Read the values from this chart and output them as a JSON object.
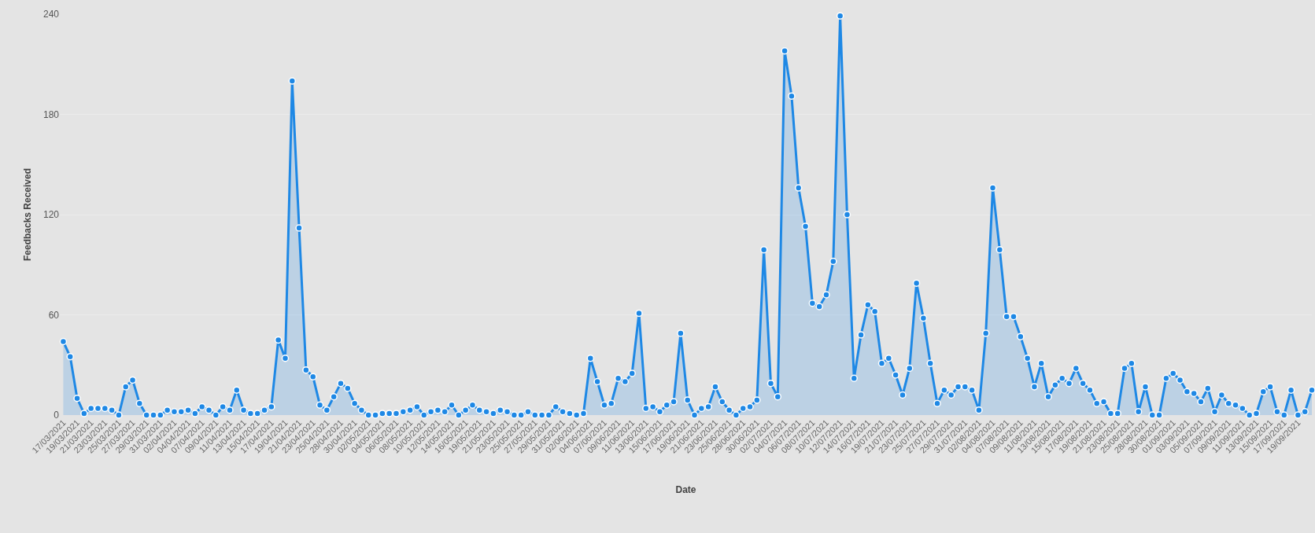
{
  "chart_data": {
    "type": "area",
    "xlabel": "Date",
    "ylabel": "Feedbacks Received",
    "categories": [
      "17/03/2021",
      null,
      "19/03/2021",
      null,
      "21/03/2021",
      null,
      "23/03/2021",
      null,
      "25/03/2021",
      null,
      "27/03/2021",
      null,
      "29/03/2021",
      null,
      "31/03/2021",
      null,
      "02/04/2021",
      null,
      "04/04/2021",
      null,
      "07/04/2021",
      null,
      "09/04/2021",
      null,
      "11/04/2021",
      null,
      "13/04/2021",
      null,
      "15/04/2021",
      null,
      "17/04/2021",
      null,
      "19/04/2021",
      null,
      "21/04/2021",
      null,
      "23/04/2021",
      null,
      "25/04/2021",
      null,
      "28/04/2021",
      null,
      "30/04/2021",
      null,
      "02/05/2021",
      null,
      "04/05/2021",
      null,
      "06/05/2021",
      null,
      "08/05/2021",
      null,
      "10/05/2021",
      null,
      "12/05/2021",
      null,
      "14/05/2021",
      null,
      "16/05/2021",
      null,
      "19/05/2021",
      null,
      "21/05/2021",
      null,
      "23/05/2021",
      null,
      "25/05/2021",
      null,
      "27/05/2021",
      null,
      "29/05/2021",
      null,
      "31/05/2021",
      null,
      "02/06/2021",
      null,
      "04/06/2021",
      null,
      "07/06/2021",
      null,
      "09/06/2021",
      null,
      "11/06/2021",
      null,
      "13/06/2021",
      null,
      "15/06/2021",
      null,
      "17/06/2021",
      null,
      "19/06/2021",
      null,
      "21/06/2021",
      null,
      "23/06/2021",
      null,
      "25/06/2021",
      null,
      "28/06/2021",
      null,
      "30/06/2021",
      null,
      "02/07/2021",
      null,
      "04/07/2021",
      null,
      "06/07/2021",
      null,
      "08/07/2021",
      null,
      "10/07/2021",
      null,
      "12/07/2021",
      null,
      "14/07/2021",
      null,
      "16/07/2021",
      null,
      "19/07/2021",
      null,
      "21/07/2021",
      null,
      "23/07/2021",
      null,
      "25/07/2021",
      null,
      "27/07/2021",
      null,
      "29/07/2021",
      null,
      "31/07/2021",
      null,
      "02/08/2021",
      null,
      "04/08/2021",
      null,
      "07/08/2021",
      null,
      "09/08/2021",
      null,
      "11/08/2021",
      null,
      "13/08/2021",
      null,
      "15/08/2021",
      null,
      "17/08/2021",
      null,
      "19/08/2021",
      null,
      "21/08/2021",
      null,
      "23/08/2021",
      null,
      "25/08/2021",
      null,
      "28/08/2021",
      null,
      "30/08/2021",
      null,
      "01/09/2021",
      null,
      "03/09/2021",
      null,
      "05/09/2021",
      null,
      "07/09/2021",
      null,
      "09/09/2021",
      null,
      "11/09/2021",
      null,
      "13/09/2021",
      null,
      "15/09/2021",
      null,
      "17/09/2021",
      null,
      "19/09/2021",
      null,
      null
    ],
    "series": [
      {
        "color": "#1e88e5",
        "values": [
          44,
          35,
          10,
          1,
          4,
          4,
          4,
          3,
          0,
          17,
          21,
          7,
          0,
          0,
          0,
          3,
          2,
          2,
          3,
          1,
          5,
          3,
          0,
          5,
          3,
          15,
          3,
          1,
          1,
          3,
          5,
          45,
          34,
          200,
          112,
          27,
          23,
          6,
          3,
          11,
          19,
          16,
          7,
          3,
          0,
          0,
          1,
          1,
          1,
          2,
          3,
          5,
          0,
          2,
          3,
          2,
          6,
          0,
          3,
          6,
          3,
          2,
          1,
          3,
          2,
          0,
          0,
          2,
          0,
          0,
          0,
          5,
          2,
          1,
          0,
          1,
          34,
          20,
          6,
          7,
          22,
          20,
          25,
          61,
          4,
          5,
          2,
          6,
          8,
          49,
          9,
          0,
          4,
          5,
          17,
          8,
          3,
          0,
          4,
          5,
          9,
          99,
          19,
          11,
          218,
          191,
          136,
          113,
          67,
          65,
          72,
          92,
          239,
          120,
          22,
          48,
          66,
          62,
          31,
          34,
          24,
          12,
          28,
          79,
          58,
          31,
          7,
          15,
          12,
          17,
          17,
          15,
          3,
          49,
          136,
          99,
          59,
          59,
          47,
          34,
          17,
          31,
          11,
          18,
          22,
          19,
          28,
          19,
          15,
          7,
          8,
          1,
          1,
          28,
          31,
          2,
          17,
          0,
          0,
          22,
          25,
          21,
          14,
          13,
          8,
          16,
          2,
          12,
          7,
          6,
          4,
          0,
          1,
          14,
          17,
          2,
          0,
          15,
          0,
          2,
          15
        ]
      }
    ],
    "ylim": [
      0,
      240
    ],
    "yticks": [
      0,
      60,
      120,
      180,
      240
    ],
    "grid": "y",
    "marker": "circle",
    "line_style": "solid"
  }
}
